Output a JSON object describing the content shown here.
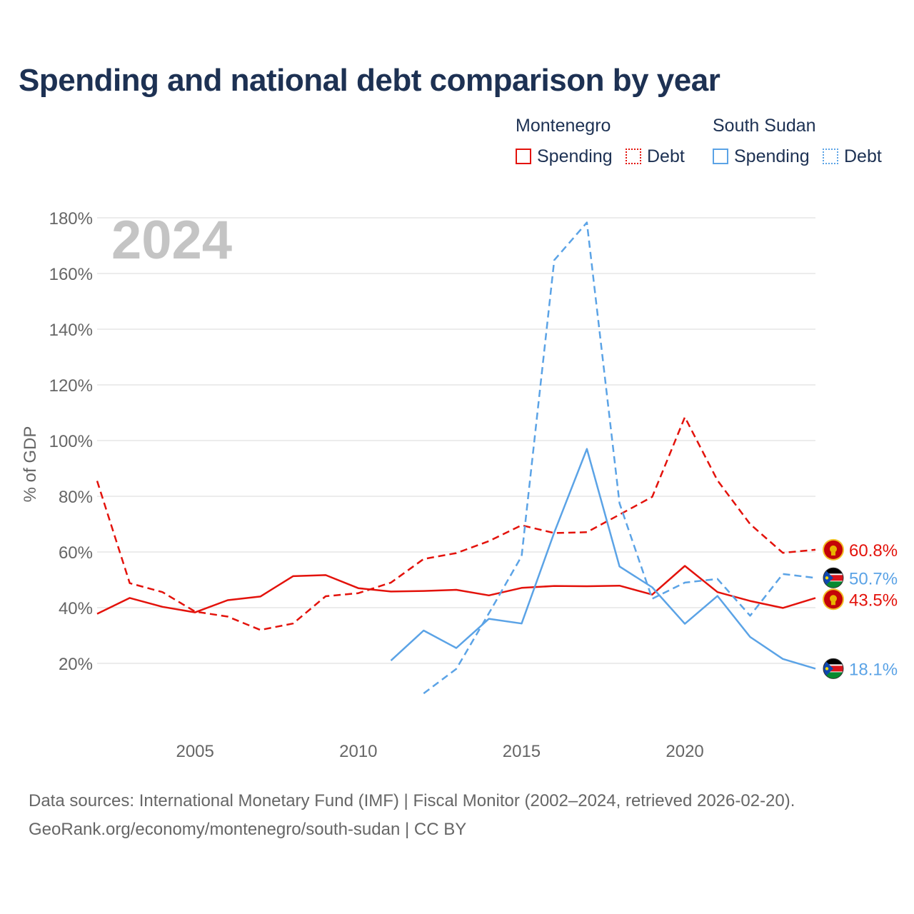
{
  "title": "Spending and national debt comparison by year",
  "colors": {
    "montenegro": "#e3120b",
    "south_sudan": "#5ba3e6",
    "grid": "#e6e6e6",
    "axis_text": "#666666",
    "title": "#1d3153",
    "year_watermark": "#c4c4c4"
  },
  "legend": {
    "groups": [
      {
        "country": "Montenegro",
        "items": [
          {
            "label": "Spending",
            "style": "solid"
          },
          {
            "label": "Debt",
            "style": "dotted"
          }
        ]
      },
      {
        "country": "South Sudan",
        "items": [
          {
            "label": "Spending",
            "style": "solid"
          },
          {
            "label": "Debt",
            "style": "dotted"
          }
        ]
      }
    ]
  },
  "chart_data": {
    "type": "line",
    "year_label": "2024",
    "ylabel": "% of GDP",
    "xlabel": "",
    "xlim": [
      2002,
      2024
    ],
    "ylim": [
      0,
      180
    ],
    "y_ticks": [
      20,
      40,
      60,
      80,
      100,
      120,
      140,
      160,
      180
    ],
    "y_tick_labels": [
      "20%",
      "40%",
      "60%",
      "80%",
      "100%",
      "120%",
      "140%",
      "160%",
      "180%"
    ],
    "x_ticks": [
      2005,
      2010,
      2015,
      2020
    ],
    "x_tick_labels": [
      "2005",
      "2010",
      "2015",
      "2020"
    ],
    "grid": true,
    "series": [
      {
        "name": "Montenegro Spending",
        "country": "montenegro",
        "dashed": false,
        "end_label": "43.5%",
        "flag": "montenegro-flag",
        "x": [
          2002,
          2003,
          2004,
          2005,
          2006,
          2007,
          2008,
          2009,
          2010,
          2011,
          2012,
          2013,
          2014,
          2015,
          2016,
          2017,
          2018,
          2019,
          2020,
          2021,
          2022,
          2023,
          2024
        ],
        "values": [
          37.8,
          43.5,
          40.3,
          38.3,
          42.7,
          44.0,
          51.3,
          51.7,
          47.0,
          45.8,
          46.0,
          46.4,
          44.4,
          47.1,
          47.8,
          47.7,
          47.9,
          44.7,
          55.0,
          45.6,
          42.4,
          39.9,
          43.5
        ]
      },
      {
        "name": "Montenegro Debt",
        "country": "montenegro",
        "dashed": true,
        "end_label": "60.8%",
        "flag": "montenegro-flag",
        "x": [
          2002,
          2003,
          2004,
          2005,
          2006,
          2007,
          2008,
          2009,
          2010,
          2011,
          2012,
          2013,
          2014,
          2015,
          2016,
          2017,
          2018,
          2019,
          2020,
          2021,
          2022,
          2023,
          2024
        ],
        "values": [
          85.5,
          48.8,
          45.6,
          38.6,
          36.8,
          32.0,
          34.3,
          44.1,
          45.2,
          49.0,
          57.5,
          59.6,
          63.9,
          69.6,
          66.8,
          67.1,
          73.4,
          79.8,
          108.4,
          85.7,
          70.0,
          59.7,
          60.8
        ]
      },
      {
        "name": "South Sudan Spending",
        "country": "south_sudan",
        "dashed": false,
        "end_label": "18.1%",
        "flag": "south-sudan-flag",
        "x": [
          2011,
          2012,
          2013,
          2014,
          2015,
          2016,
          2017,
          2018,
          2019,
          2020,
          2021,
          2022,
          2023,
          2024
        ],
        "values": [
          21.0,
          31.8,
          25.5,
          36.0,
          34.3,
          67.0,
          97.0,
          54.8,
          47.3,
          34.2,
          44.2,
          29.5,
          21.6,
          18.1
        ]
      },
      {
        "name": "South Sudan Debt",
        "country": "south_sudan",
        "dashed": true,
        "end_label": "50.7%",
        "flag": "south-sudan-flag",
        "x": [
          2012,
          2013,
          2014,
          2015,
          2016,
          2017,
          2018,
          2019,
          2020,
          2021,
          2022,
          2023,
          2024
        ],
        "values": [
          9.2,
          18.0,
          38.0,
          58.5,
          164.8,
          178.3,
          77.5,
          43.2,
          49.0,
          50.3,
          37.1,
          52.1,
          50.7
        ]
      }
    ]
  },
  "footer": {
    "source": "Data sources: International Monetary Fund (IMF) | Fiscal Monitor (2002–2024, retrieved 2026-02-20).",
    "attribution": "GeoRank.org/economy/montenegro/south-sudan | CC BY"
  }
}
